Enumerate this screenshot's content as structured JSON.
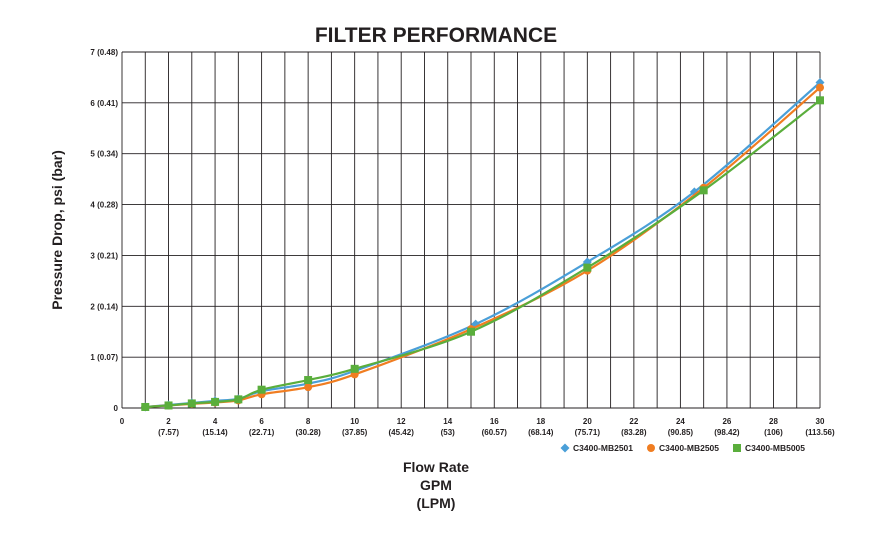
{
  "chart_data": {
    "type": "line",
    "title": "FILTER PERFORMANCE",
    "ylabel": "Pressure Drop, psi (bar)",
    "xlabel_lines": [
      "Flow Rate",
      "GPM",
      "(LPM)"
    ],
    "xlim": [
      0,
      30
    ],
    "ylim": [
      0,
      7
    ],
    "x_ticks": [
      {
        "value": 0,
        "label": "0",
        "sub": ""
      },
      {
        "value": 2,
        "label": "2",
        "sub": "(7.57)"
      },
      {
        "value": 4,
        "label": "4",
        "sub": "(15.14)"
      },
      {
        "value": 6,
        "label": "6",
        "sub": "(22.71)"
      },
      {
        "value": 8,
        "label": "8",
        "sub": "(30.28)"
      },
      {
        "value": 10,
        "label": "10",
        "sub": "(37.85)"
      },
      {
        "value": 12,
        "label": "12",
        "sub": "(45.42)"
      },
      {
        "value": 14,
        "label": "14",
        "sub": "(53)"
      },
      {
        "value": 16,
        "label": "16",
        "sub": "(60.57)"
      },
      {
        "value": 18,
        "label": "18",
        "sub": "(68.14)"
      },
      {
        "value": 20,
        "label": "20",
        "sub": "(75.71)"
      },
      {
        "value": 22,
        "label": "22",
        "sub": "(83.28)"
      },
      {
        "value": 24,
        "label": "24",
        "sub": "(90.85)"
      },
      {
        "value": 26,
        "label": "26",
        "sub": "(98.42)"
      },
      {
        "value": 28,
        "label": "28",
        "sub": "(106)"
      },
      {
        "value": 30,
        "label": "30",
        "sub": "(113.56)"
      }
    ],
    "y_ticks": [
      {
        "value": 0,
        "label": "0"
      },
      {
        "value": 1,
        "label": "1 (0.07)"
      },
      {
        "value": 2,
        "label": "2 (0.14)"
      },
      {
        "value": 3,
        "label": "3 (0.21)"
      },
      {
        "value": 4,
        "label": "4 (0.28)"
      },
      {
        "value": 5,
        "label": "5 (0.34)"
      },
      {
        "value": 6,
        "label": "6 (0.41)"
      },
      {
        "value": 7,
        "label": "7 (0.48)"
      }
    ],
    "grid": true,
    "legend_position": "bottom-right",
    "series": [
      {
        "name": "C3400-MB2501",
        "color": "#4a9fd8",
        "marker": "diamond",
        "points": [
          [
            1,
            0.02
          ],
          [
            2,
            0.06
          ],
          [
            3,
            0.1
          ],
          [
            4,
            0.14
          ],
          [
            5,
            0.18
          ],
          [
            6,
            0.33
          ],
          [
            8,
            0.48
          ],
          [
            10,
            0.73
          ],
          [
            15.2,
            1.65
          ],
          [
            20,
            2.87
          ],
          [
            24.6,
            4.25
          ],
          [
            30,
            6.4
          ]
        ]
      },
      {
        "name": "C3400-MB2505",
        "color": "#f07d21",
        "marker": "circle",
        "points": [
          [
            1,
            0.02
          ],
          [
            2,
            0.05
          ],
          [
            3,
            0.08
          ],
          [
            4,
            0.11
          ],
          [
            5,
            0.15
          ],
          [
            6,
            0.27
          ],
          [
            8,
            0.41
          ],
          [
            10,
            0.66
          ],
          [
            15,
            1.55
          ],
          [
            20,
            2.7
          ],
          [
            25,
            4.33
          ],
          [
            30,
            6.3
          ]
        ]
      },
      {
        "name": "C3400-MB5005",
        "color": "#5aae3c",
        "marker": "square",
        "points": [
          [
            1,
            0.02
          ],
          [
            2,
            0.05
          ],
          [
            3,
            0.09
          ],
          [
            4,
            0.12
          ],
          [
            5,
            0.17
          ],
          [
            6,
            0.36
          ],
          [
            8,
            0.55
          ],
          [
            10,
            0.77
          ],
          [
            15,
            1.5
          ],
          [
            20,
            2.76
          ],
          [
            25,
            4.28
          ],
          [
            30,
            6.05
          ]
        ]
      }
    ]
  }
}
